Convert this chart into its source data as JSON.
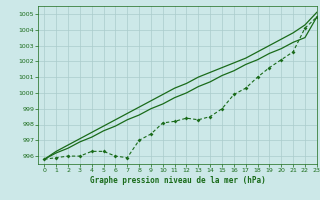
{
  "title": "Graphe pression niveau de la mer (hPa)",
  "xlim": [
    -0.5,
    23
  ],
  "ylim": [
    995.5,
    1005.5
  ],
  "yticks": [
    996,
    997,
    998,
    999,
    1000,
    1001,
    1002,
    1003,
    1004,
    1005
  ],
  "xticks": [
    0,
    1,
    2,
    3,
    4,
    5,
    6,
    7,
    8,
    9,
    10,
    11,
    12,
    13,
    14,
    15,
    16,
    17,
    18,
    19,
    20,
    21,
    22,
    23
  ],
  "background_color": "#cce8e8",
  "grid_color": "#aacccc",
  "line_color": "#1a6b1a",
  "smooth_line1": [
    995.8,
    996.2,
    996.5,
    996.9,
    997.2,
    997.6,
    997.9,
    998.3,
    998.6,
    999.0,
    999.3,
    999.7,
    1000.0,
    1000.4,
    1000.7,
    1001.1,
    1001.4,
    1001.8,
    1002.1,
    1002.5,
    1002.8,
    1003.2,
    1003.5,
    1004.8
  ],
  "smooth_line2": [
    995.8,
    996.3,
    996.7,
    997.1,
    997.5,
    997.9,
    998.3,
    998.7,
    999.1,
    999.5,
    999.9,
    1000.3,
    1000.6,
    1001.0,
    1001.3,
    1001.6,
    1001.9,
    1002.2,
    1002.6,
    1003.0,
    1003.4,
    1003.8,
    1004.3,
    1005.1
  ],
  "marker_line": [
    995.8,
    995.9,
    996.0,
    996.0,
    996.3,
    996.3,
    996.0,
    995.9,
    997.0,
    997.4,
    998.1,
    998.2,
    998.4,
    998.3,
    998.5,
    999.0,
    999.9,
    1000.3,
    1001.0,
    1001.6,
    1002.1,
    1002.6,
    1004.1,
    1004.8
  ]
}
